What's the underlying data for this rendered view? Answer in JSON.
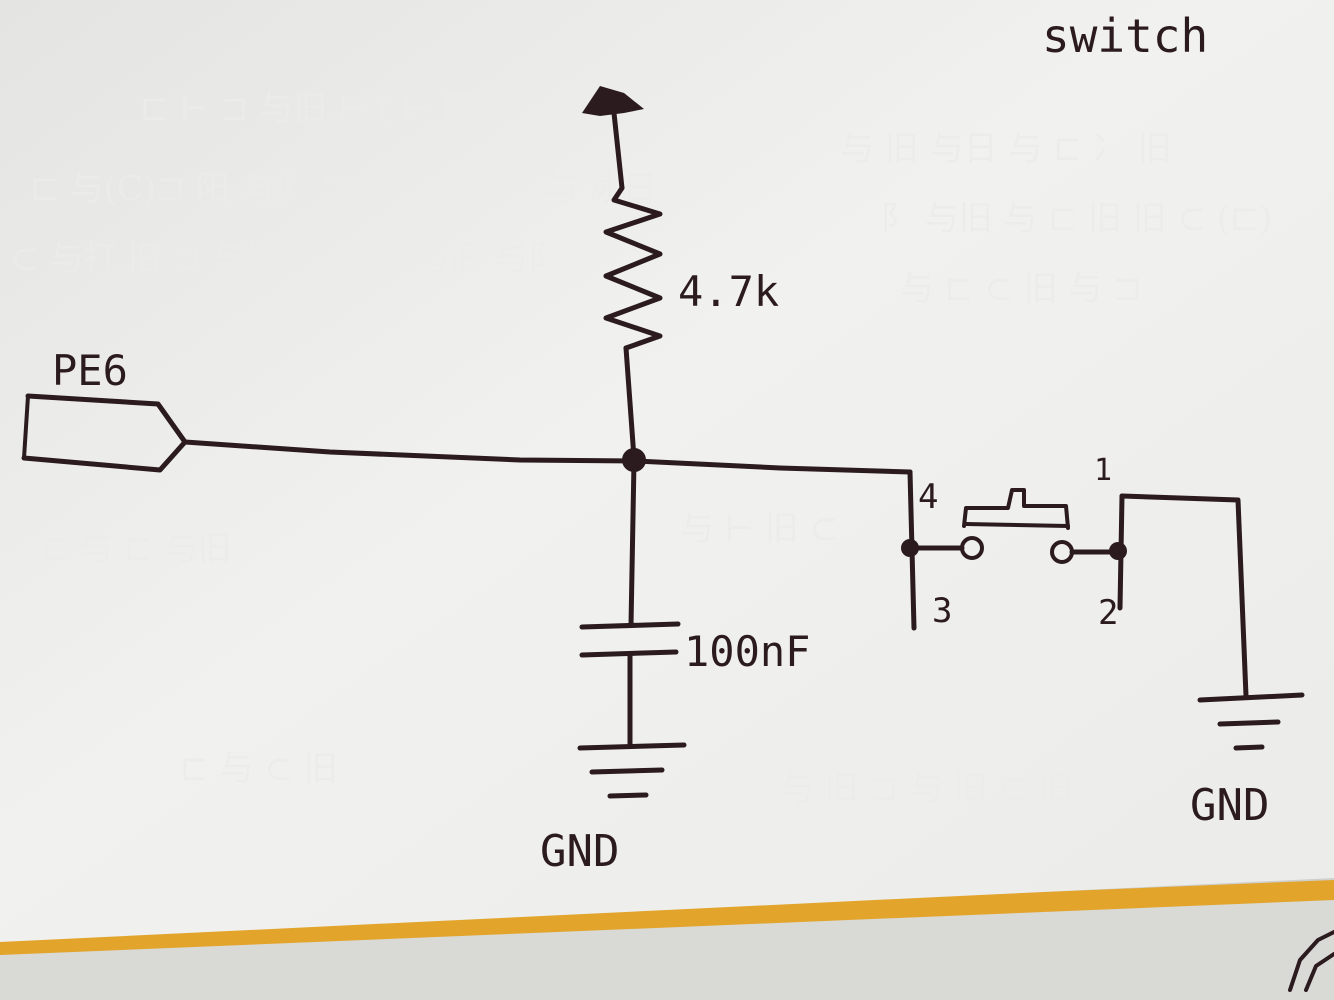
{
  "title": "switch",
  "signal": {
    "label": "PE6"
  },
  "resistor": {
    "value": "4.7k"
  },
  "capacitor": {
    "value": "100nF"
  },
  "grounds": [
    {
      "label": "GND"
    },
    {
      "label": "GND"
    }
  ],
  "switch_pins": {
    "p1": "1",
    "p2": "2",
    "p3": "3",
    "p4": "4"
  },
  "colors": {
    "ink": "#2b1b1e",
    "paper": "#f0f0ee",
    "shadow": "#c9c9c7",
    "desk": "#e2a42a"
  }
}
